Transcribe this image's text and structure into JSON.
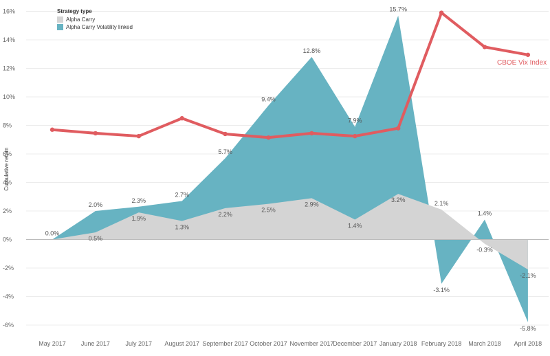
{
  "chart_data": {
    "type": "area",
    "title": "",
    "xlabel": "",
    "ylabel": "Cumulative return",
    "ylim": [
      -7,
      16.5
    ],
    "yticks": [
      -6,
      -4,
      -2,
      0,
      2,
      4,
      6,
      8,
      10,
      12,
      14,
      16
    ],
    "ytick_labels": [
      "-6%",
      "-4%",
      "-2%",
      "0%",
      "2%",
      "4%",
      "6%",
      "8%",
      "10%",
      "12%",
      "14%",
      "16%"
    ],
    "categories": [
      "May 2017",
      "June 2017",
      "July 2017",
      "August 2017",
      "September 2017",
      "October 2017",
      "November 2017",
      "December 2017",
      "January 2018",
      "February 2018",
      "March 2018",
      "April 2018"
    ],
    "legend": {
      "title": "Strategy type",
      "position": "top-left"
    },
    "series": [
      {
        "name": "Alpha Carry Volatility linked",
        "kind": "area",
        "color": "#67b3c2",
        "values": [
          0.0,
          2.0,
          2.3,
          2.7,
          5.7,
          9.4,
          12.8,
          7.9,
          15.7,
          -3.1,
          1.4,
          -5.8
        ],
        "labels": [
          "0.0%",
          "2.0%",
          "2.3%",
          "2.7%",
          "5.7%",
          "9.4%",
          "12.8%",
          "7.9%",
          "15.7%",
          "-3.1%",
          "1.4%",
          "-5.8%"
        ]
      },
      {
        "name": "Alpha Carry",
        "kind": "area",
        "color": "#d4d4d4",
        "values": [
          0.0,
          0.5,
          1.9,
          1.3,
          2.2,
          2.5,
          2.9,
          1.4,
          3.2,
          2.1,
          -0.3,
          -2.1
        ],
        "labels": [
          "",
          "0.5%",
          "1.9%",
          "1.3%",
          "2.2%",
          "2.5%",
          "2.9%",
          "1.4%",
          "3.2%",
          "2.1%",
          "-0.3%",
          "-2.1%"
        ]
      },
      {
        "name": "CBOE Vix Index",
        "kind": "line",
        "color": "#e05c60",
        "values": [
          7.7,
          7.45,
          7.25,
          8.5,
          7.4,
          7.15,
          7.45,
          7.25,
          7.8,
          15.9,
          13.5,
          12.95
        ]
      }
    ]
  }
}
